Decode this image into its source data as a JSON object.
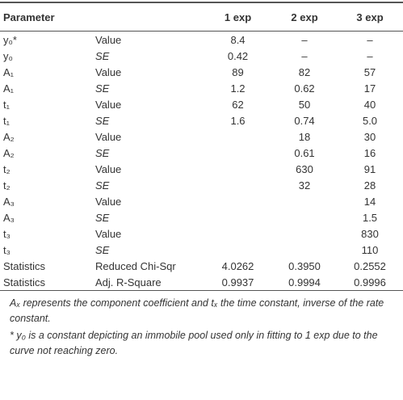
{
  "table": {
    "header": [
      "Parameter",
      "1 exp",
      "2 exp",
      "3 exp"
    ],
    "rows": [
      [
        "y₀*",
        "Value",
        "8.4",
        "–",
        "–"
      ],
      [
        "y₀",
        "SE",
        "0.42",
        "–",
        "–"
      ],
      [
        "A₁",
        "Value",
        "89",
        "82",
        "57"
      ],
      [
        "A₁",
        "SE",
        "1.2",
        "0.62",
        "17"
      ],
      [
        "t₁",
        "Value",
        "62",
        "50",
        "40"
      ],
      [
        "t₁",
        "SE",
        "1.6",
        "0.74",
        "5.0"
      ],
      [
        "A₂",
        "Value",
        null,
        "18",
        "30"
      ],
      [
        "A₂",
        "SE",
        null,
        "0.61",
        "16"
      ],
      [
        "t₂",
        "Value",
        null,
        "630",
        "91"
      ],
      [
        "t₂",
        "SE",
        null,
        "32",
        "28"
      ],
      [
        "A₃",
        "Value",
        null,
        null,
        "14"
      ],
      [
        "A₃",
        "SE",
        null,
        null,
        "1.5"
      ],
      [
        "t₃",
        "Value",
        null,
        null,
        "830"
      ],
      [
        "t₃",
        "SE",
        null,
        null,
        "110"
      ],
      [
        "Statistics",
        "Reduced Chi-Sqr",
        "4.0262",
        "0.3950",
        "0.2552"
      ],
      [
        "Statistics",
        "Adj. R-Square",
        "0.9937",
        "0.9994",
        "0.9996"
      ]
    ],
    "footnotes": [
      "Aₓ represents the component coefficient and tₓ the time constant, inverse of the rate constant.",
      "* y₀ is a constant depicting an immobile pool used only in fitting to 1 exp due to the curve not reaching zero."
    ]
  }
}
